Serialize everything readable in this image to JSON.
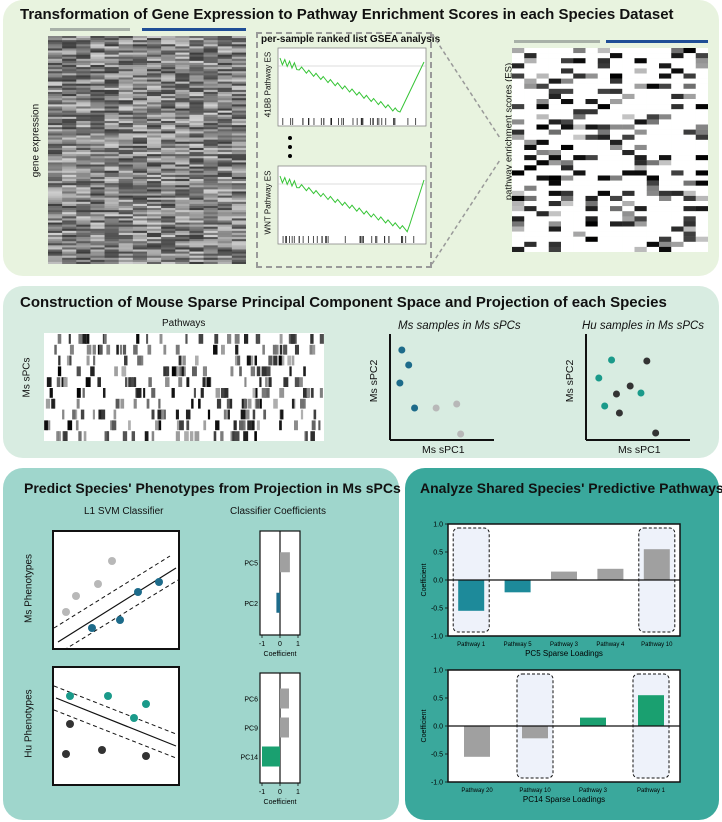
{
  "section1": {
    "title": "Transformation of Gene Expression to Pathway Enrichment Scores in each Species Dataset",
    "gene_expression_label": "gene expression",
    "gsea_title": "per-sample ranked list GSEA analysis",
    "gsea_plot1_ylabel": "41BB Pathway ES",
    "gsea_plot2_ylabel": "WNT Pathway ES",
    "es_label": "pathway enrichment scores (ES)",
    "colors": {
      "mouse_bar": "#a8b1a8",
      "human_bar": "#1f4e96",
      "gsea_line": "#35c435"
    }
  },
  "section2": {
    "title": "Construction of Mouse Sparse Principal Component Space and Projection of each Species",
    "pathways_label": "Pathways",
    "ms_spcs_label": "Ms sPCs",
    "scatter1": {
      "title": "Ms samples in Ms sPCs",
      "xlabel": "Ms sPC1",
      "ylabel": "Ms sPC2",
      "points": [
        {
          "x": 0.08,
          "y": 0.88,
          "color": "#1d6b8a"
        },
        {
          "x": 0.06,
          "y": 0.55,
          "color": "#1d6b8a"
        },
        {
          "x": 0.21,
          "y": 0.3,
          "color": "#1d6b8a"
        },
        {
          "x": 0.43,
          "y": 0.3,
          "color": "#b8b8b8"
        },
        {
          "x": 0.64,
          "y": 0.34,
          "color": "#b8b8b8"
        },
        {
          "x": 0.68,
          "y": 0.04,
          "color": "#b8b8b8"
        },
        {
          "x": 0.15,
          "y": 0.73,
          "color": "#1d6b8a"
        }
      ]
    },
    "scatter2": {
      "title": "Hu samples in Ms sPCs",
      "xlabel": "Ms sPC1",
      "ylabel": "Ms sPC2",
      "points": [
        {
          "x": 0.22,
          "y": 0.78,
          "color": "#1a9a8a"
        },
        {
          "x": 0.09,
          "y": 0.6,
          "color": "#1a9a8a"
        },
        {
          "x": 0.41,
          "y": 0.52,
          "color": "#333333"
        },
        {
          "x": 0.58,
          "y": 0.77,
          "color": "#333333"
        },
        {
          "x": 0.27,
          "y": 0.44,
          "color": "#333333"
        },
        {
          "x": 0.15,
          "y": 0.32,
          "color": "#1a9a8a"
        },
        {
          "x": 0.3,
          "y": 0.25,
          "color": "#333333"
        },
        {
          "x": 0.52,
          "y": 0.45,
          "color": "#1a9a8a"
        },
        {
          "x": 0.67,
          "y": 0.05,
          "color": "#333333"
        }
      ]
    }
  },
  "section3": {
    "title": "Predict Species' Phenotypes from Projection in Ms sPCs",
    "svm_label": "L1 SVM Classifier",
    "coef_label": "Classifier Coefficients",
    "ms_phenotypes_label": "Ms Phenotypes",
    "hu_phenotypes_label": "Hu Phenotypes",
    "coef_xlabel": "Coefficient",
    "coef_ticks": [
      "-1",
      "0",
      "1"
    ],
    "ms_coef_chart": {
      "rows": [
        "PC5",
        "PC2"
      ],
      "values": [
        0.55,
        -0.2
      ],
      "colors": [
        "#a0a0a0",
        "#1d6b8a"
      ]
    },
    "hu_coef_chart": {
      "rows": [
        "PC6",
        "PC9",
        "PC14"
      ],
      "values": [
        0.5,
        0.5,
        -1.0
      ],
      "colors": [
        "#a0a0a0",
        "#a0a0a0",
        "#1aa070"
      ]
    }
  },
  "section4": {
    "title": "Analyze Shared Species' Predictive Pathways"
  },
  "chart_data": [
    {
      "type": "bar",
      "title": "",
      "categories": [
        "Pathway 1",
        "Pathway 5",
        "Pathway 3",
        "Pathway 4",
        "Pathway 10"
      ],
      "values": [
        -0.55,
        -0.22,
        0.15,
        0.2,
        0.55
      ],
      "colors": [
        "#1d8a9a",
        "#1d8a9a",
        "#a0a0a0",
        "#a0a0a0",
        "#a0a0a0"
      ],
      "xlabel": "PC5  Sparse Loadings",
      "ylabel": "Coefficient",
      "ylim": [
        -1.0,
        1.0
      ],
      "yticks": [
        "1.0",
        "0.5",
        "0.0",
        "-0.5",
        "-1.0"
      ],
      "highlighted": [
        "Pathway 1",
        "Pathway 10"
      ]
    },
    {
      "type": "bar",
      "title": "",
      "categories": [
        "Pathway 20",
        "Pathway 10",
        "Pathway 3",
        "Pathway 1"
      ],
      "values": [
        -0.55,
        -0.22,
        0.15,
        0.55
      ],
      "colors": [
        "#a0a0a0",
        "#a0a0a0",
        "#1aa070",
        "#1aa070"
      ],
      "xlabel": "PC14  Sparse Loadings",
      "ylabel": "Coefficient",
      "ylim": [
        -1.0,
        1.0
      ],
      "yticks": [
        "1.0",
        "0.5",
        "0.0",
        "-0.5",
        "-1.0"
      ],
      "highlighted": [
        "Pathway 10",
        "Pathway 1"
      ]
    }
  ]
}
